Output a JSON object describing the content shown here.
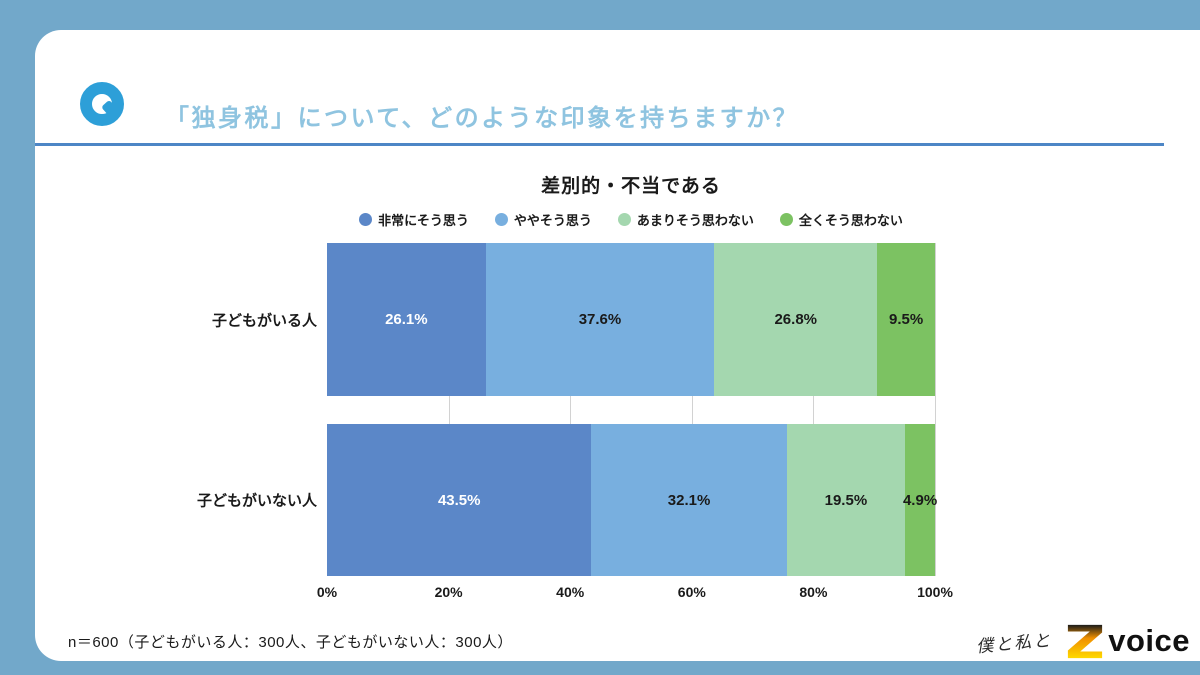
{
  "colors": {
    "background": "#72a8ca",
    "card": "#ffffff",
    "title_text": "#8fc4e0",
    "divider": "#4d86c6",
    "q_icon": "#2d9fd8",
    "label_dark": "#1a1a1a",
    "label_light": "#ffffff"
  },
  "header": {
    "question": "「独身税」について、どのような印象を持ちますか？"
  },
  "chart_data": {
    "type": "bar",
    "orientation": "horizontal-stacked",
    "title": "差別的・不当である",
    "categories": [
      "子どもがいる人",
      "子どもがいない人"
    ],
    "series": [
      {
        "name": "非常にそう思う",
        "color": "#5b87c8",
        "values": [
          26.1,
          43.5
        ]
      },
      {
        "name": "ややそう思う",
        "color": "#78afdf",
        "values": [
          37.6,
          32.1
        ]
      },
      {
        "name": "あまりそう思わない",
        "color": "#a4d7af",
        "values": [
          26.8,
          19.5
        ]
      },
      {
        "name": "全くそう思わない",
        "color": "#7cc262",
        "values": [
          9.5,
          4.9
        ]
      }
    ],
    "x_ticks": [
      "0%",
      "20%",
      "40%",
      "60%",
      "80%",
      "100%"
    ],
    "xlim": [
      0,
      100
    ],
    "gridlines_percent": [
      20,
      40,
      60,
      80,
      100
    ],
    "value_suffix": "%",
    "legend_position": "top"
  },
  "footer": {
    "note": "n＝600（子どもがいる人：300人、子どもがいない人：300人）"
  },
  "brand": {
    "handwritten": "僕と私と",
    "logo_letter": "Z",
    "logo_text": "voice"
  }
}
